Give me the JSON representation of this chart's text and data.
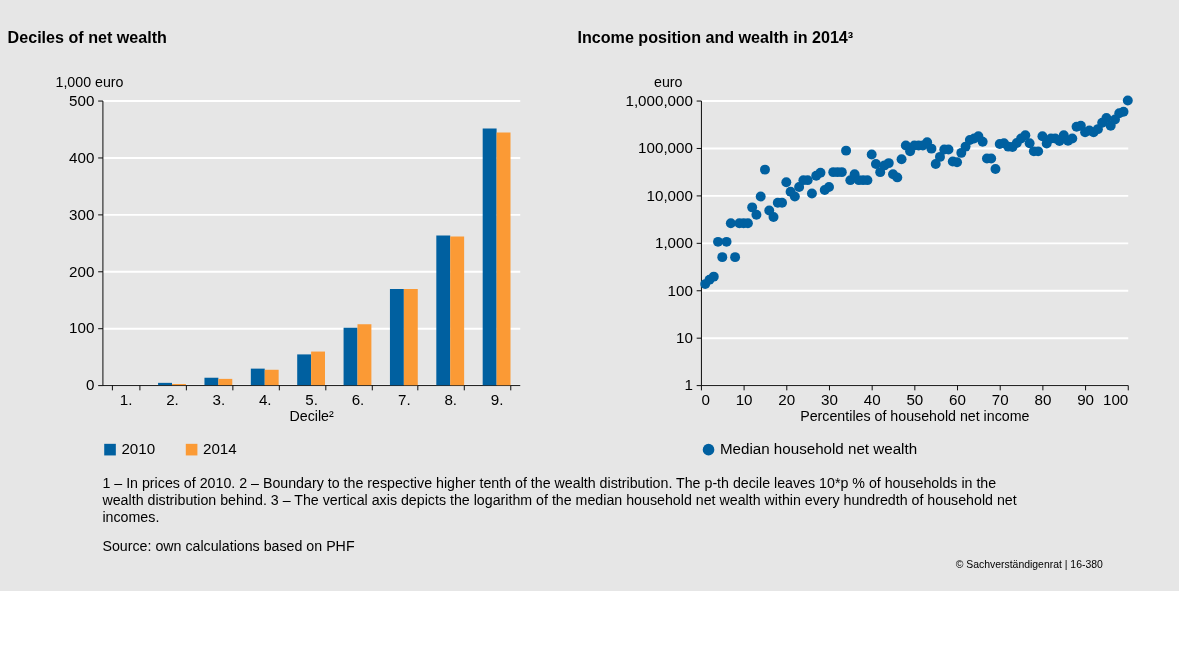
{
  "chart_data": [
    {
      "type": "bar",
      "title": "Deciles of net wealth",
      "ylabel": "1,000 euro",
      "xlabel": "Decile²",
      "categories": [
        "1.",
        "2.",
        "3.",
        "4.",
        "5.",
        "6.",
        "7.",
        "8.",
        "9."
      ],
      "series": [
        {
          "name": "2010",
          "color": "#0060a0",
          "values": [
            0,
            4,
            13,
            29,
            54,
            101,
            169,
            263,
            451
          ]
        },
        {
          "name": "2014",
          "color": "#fb9a35",
          "values": [
            0,
            2,
            11,
            27,
            59,
            107,
            169,
            261,
            444
          ]
        }
      ],
      "ylim": [
        0,
        500
      ],
      "yticks": [
        0,
        100,
        200,
        300,
        400,
        500
      ],
      "grid": "y",
      "legend": "bottom",
      "annotations": [
        "1 – In prices of 2010.  2 – Boundary to the respective higher tenth of the wealth distribution. The p-th decile leaves 10*p % of households in the wealth distribution behind.  3 – The vertical axis depicts the logarithm of the median household net wealth within every hundredth of household net incomes.",
        "Source: own calculations based on PHF",
        "© Sachverständigenrat | 16-380"
      ]
    },
    {
      "type": "scatter",
      "title": "Income position and wealth in 2014³",
      "ylabel": "euro",
      "xlabel": "Percentiles of household net income",
      "x": [
        1,
        2,
        3,
        4,
        5,
        6,
        7,
        8,
        9,
        10,
        11,
        12,
        13,
        14,
        15,
        16,
        17,
        18,
        19,
        20,
        21,
        22,
        23,
        24,
        25,
        26,
        27,
        28,
        29,
        30,
        31,
        32,
        33,
        34,
        35,
        36,
        37,
        38,
        39,
        40,
        41,
        42,
        43,
        44,
        45,
        46,
        47,
        48,
        49,
        50,
        51,
        52,
        53,
        54,
        55,
        56,
        57,
        58,
        59,
        60,
        61,
        62,
        63,
        64,
        65,
        66,
        67,
        68,
        69,
        70,
        71,
        72,
        73,
        74,
        75,
        76,
        77,
        78,
        79,
        80,
        81,
        82,
        83,
        84,
        85,
        86,
        87,
        88,
        89,
        90,
        91,
        92,
        93,
        94,
        95,
        96,
        97,
        98,
        99,
        100
      ],
      "series": [
        {
          "name": "Median household net wealth",
          "color": "#0060a0",
          "values": [
            135,
            166,
            194,
            1050,
            500,
            1050,
            2600,
            500,
            2600,
            2600,
            2600,
            5600,
            3900,
            9500,
            35000,
            4800,
            3500,
            7000,
            7000,
            19000,
            12000,
            9500,
            15000,
            21000,
            21000,
            11000,
            26000,
            30000,
            13000,
            15000,
            31000,
            31000,
            31000,
            88000,
            21000,
            28000,
            21000,
            21000,
            21000,
            73000,
            46000,
            31000,
            43000,
            48000,
            28000,
            24000,
            58000,
            113000,
            85000,
            113000,
            113000,
            113000,
            132000,
            97000,
            46000,
            65000,
            93000,
            93000,
            52000,
            50000,
            79000,
            107000,
            147000,
            158000,
            177000,
            135000,
            60000,
            60000,
            36000,
            122000,
            126000,
            107000,
            105000,
            128000,
            158000,
            185000,
            126000,
            85000,
            85000,
            177000,
            125000,
            158000,
            158000,
            140000,
            185000,
            142000,
            158000,
            280000,
            295000,
            215000,
            233000,
            215000,
            250000,
            340000,
            430000,
            295000,
            400000,
            540000,
            580000,
            1000000
          ]
        }
      ],
      "xlim": [
        0,
        100
      ],
      "xticks": [
        0,
        10,
        20,
        30,
        40,
        50,
        60,
        70,
        80,
        90,
        100
      ],
      "ylim": [
        1,
        1000000
      ],
      "log": "y",
      "yticks": [
        1,
        10,
        100,
        {
          "value": 1000,
          "label": "1,000"
        },
        {
          "value": 10000,
          "label": "10,000"
        },
        {
          "value": 100000,
          "label": "100,000"
        },
        {
          "value": 1000000,
          "label": "1,000,000"
        }
      ],
      "grid": "y",
      "legend": "bottom",
      "marker": "circle"
    }
  ]
}
